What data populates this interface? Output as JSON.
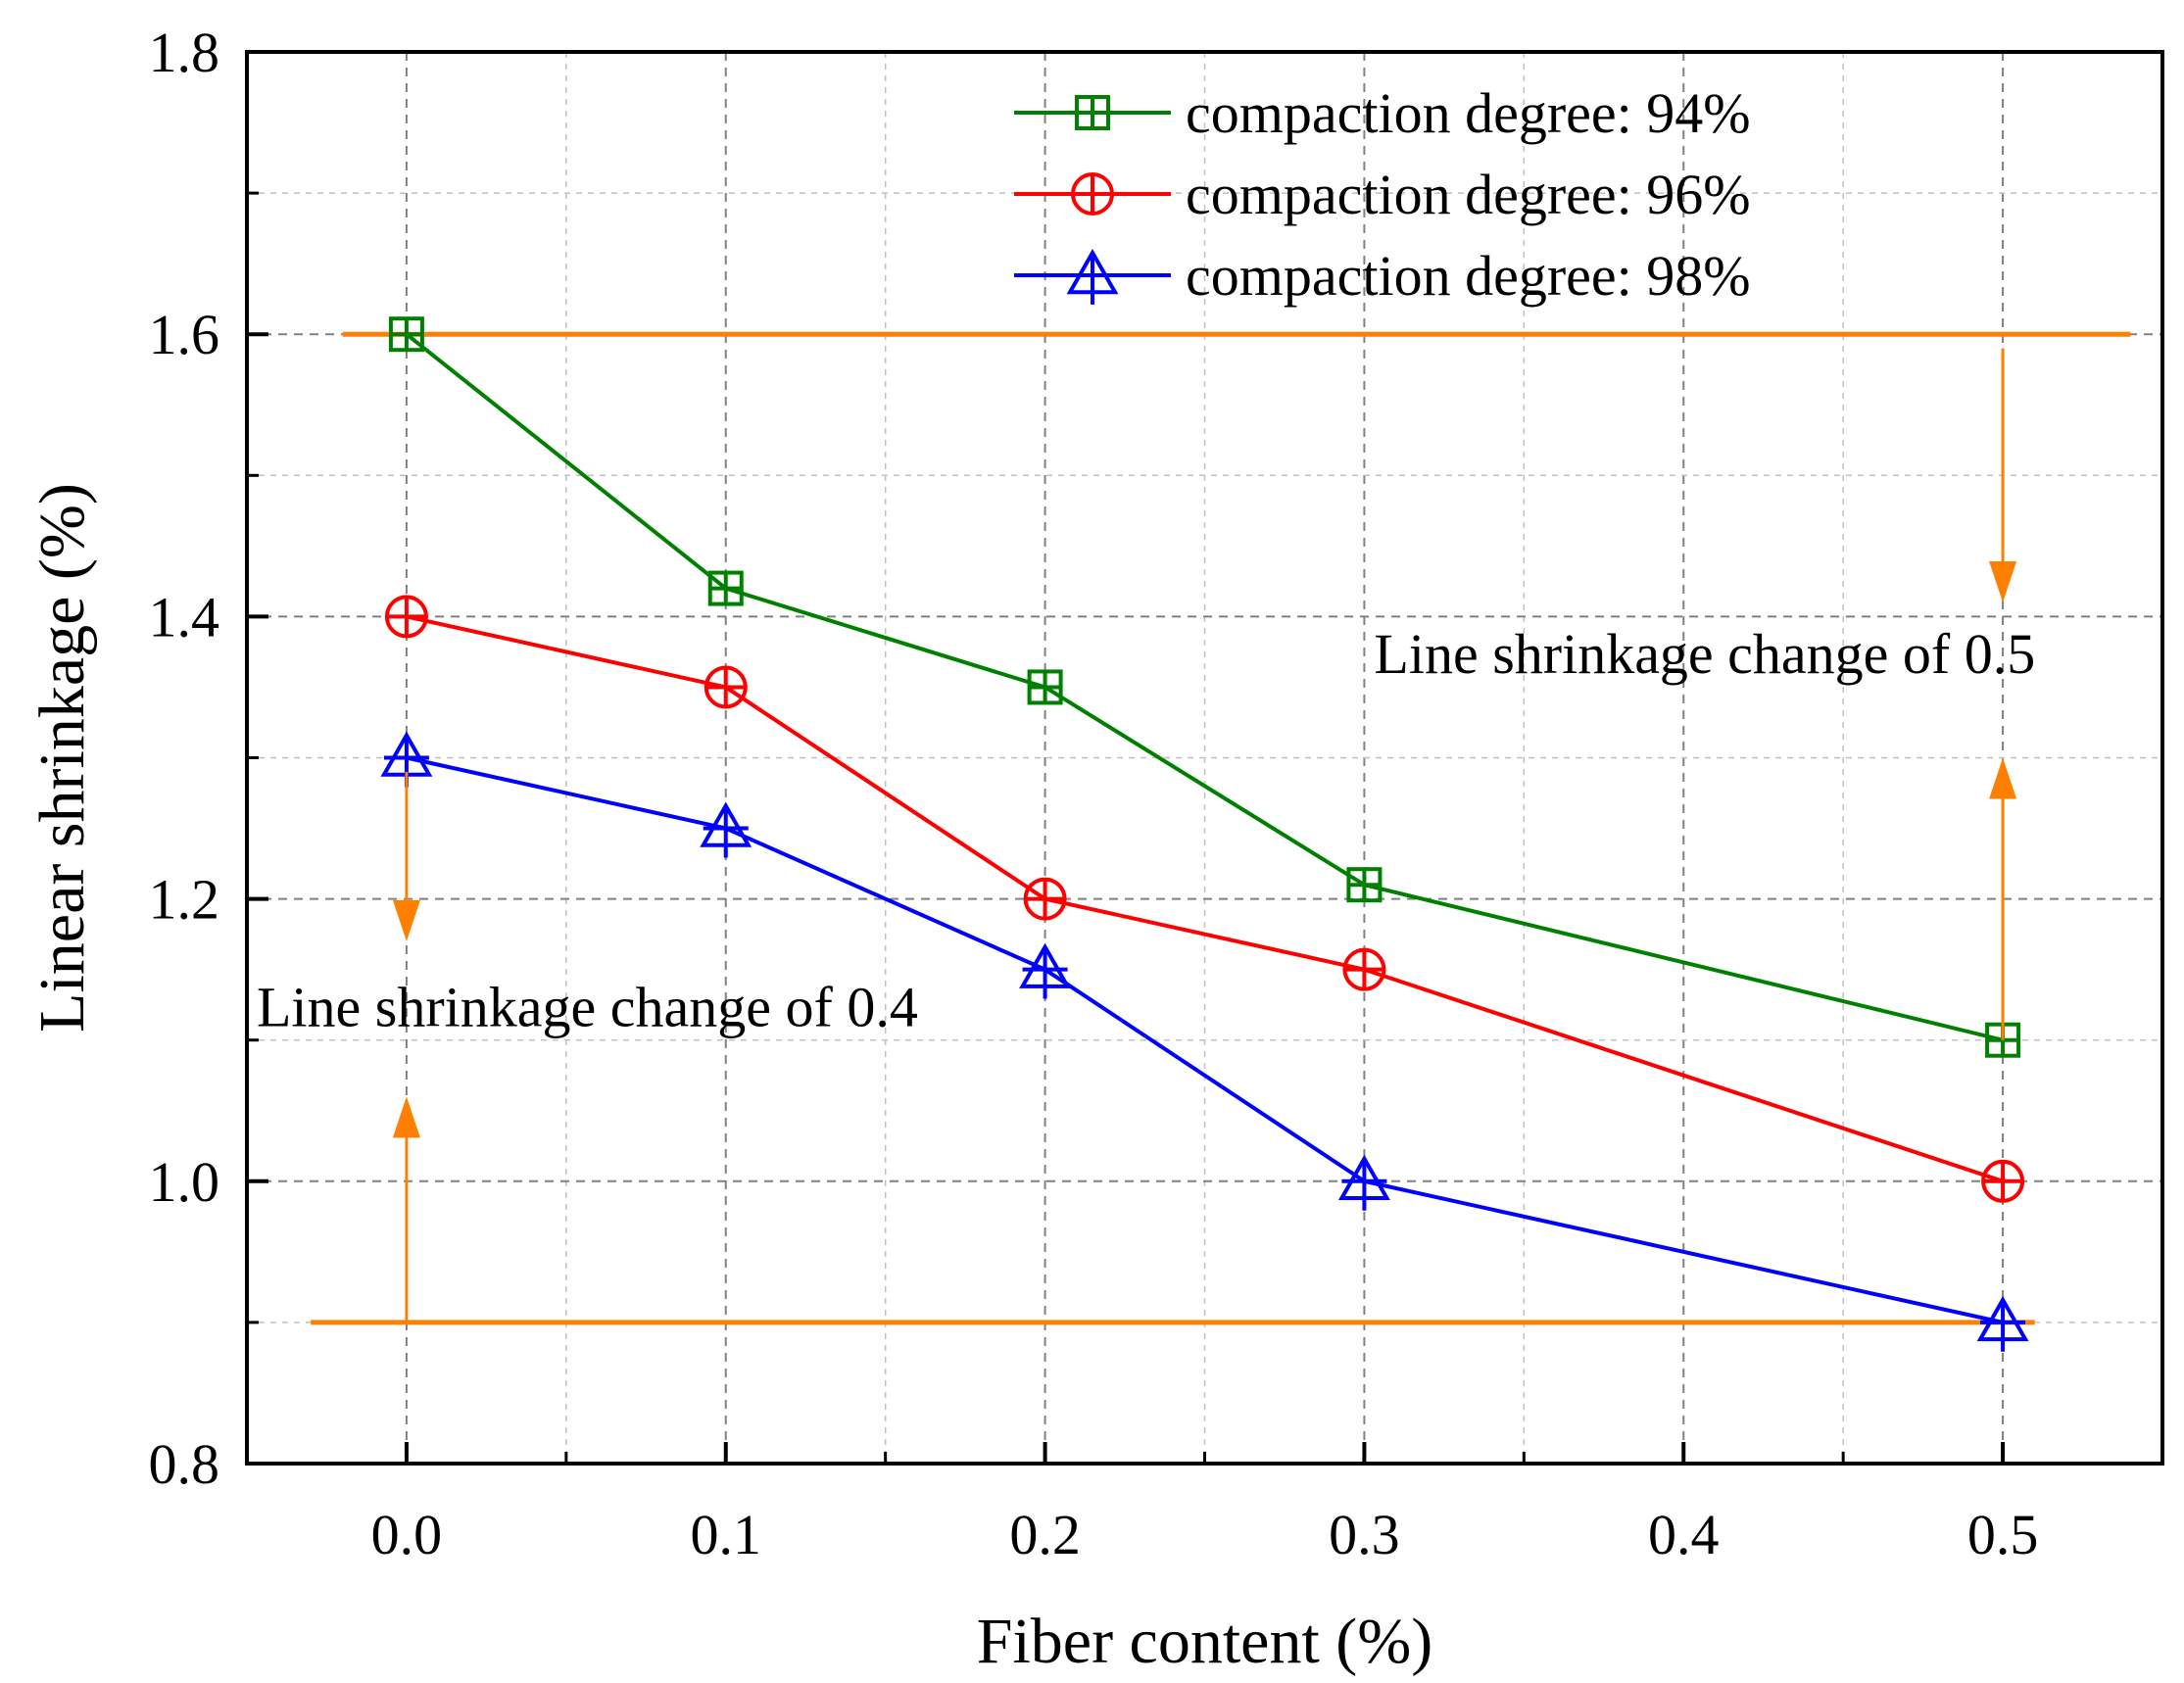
{
  "chart_data": {
    "type": "line",
    "title": "",
    "xlabel": "Fiber content (%)",
    "ylabel": "Linear shrinkage (%)",
    "xlim": [
      -0.05,
      0.55
    ],
    "ylim": [
      0.8,
      1.8
    ],
    "x_ticks": [
      0.0,
      0.1,
      0.2,
      0.3,
      0.4,
      0.5
    ],
    "x_tick_labels": [
      "0.0",
      "0.1",
      "0.2",
      "0.3",
      "0.4",
      "0.5"
    ],
    "x_minor_ticks": [
      0.05,
      0.15,
      0.25,
      0.35,
      0.45
    ],
    "y_ticks": [
      0.8,
      1.0,
      1.2,
      1.4,
      1.6,
      1.8
    ],
    "y_tick_labels": [
      "0.8",
      "1.0",
      "1.2",
      "1.4",
      "1.6",
      "1.8"
    ],
    "y_minor_ticks": [
      0.9,
      1.1,
      1.3,
      1.5,
      1.7
    ],
    "grid": true,
    "legend_position": "top-right",
    "series": [
      {
        "name": "compaction degree: 94%",
        "color": "#008000",
        "marker": "square-plus",
        "x": [
          0.0,
          0.1,
          0.2,
          0.3,
          0.5
        ],
        "values": [
          1.6,
          1.42,
          1.35,
          1.21,
          1.1
        ]
      },
      {
        "name": "compaction degree: 96%",
        "color": "#ff0000",
        "marker": "circle-plus",
        "x": [
          0.0,
          0.1,
          0.2,
          0.3,
          0.5
        ],
        "values": [
          1.4,
          1.35,
          1.2,
          1.15,
          1.0
        ]
      },
      {
        "name": "compaction degree: 98%",
        "color": "#0000ff",
        "marker": "triangle-plus",
        "x": [
          0.0,
          0.1,
          0.2,
          0.3,
          0.5
        ],
        "values": [
          1.3,
          1.25,
          1.15,
          1.0,
          0.9
        ]
      }
    ],
    "reference_lines": [
      {
        "y": 1.6,
        "x_from": -0.02,
        "x_to": 0.54,
        "color": "#ff8000"
      },
      {
        "y": 0.9,
        "x_from": -0.03,
        "x_to": 0.51,
        "color": "#ff8000"
      }
    ],
    "annotations": [
      {
        "text": "Line shrinkage change of 0.5",
        "color": "#ff8000",
        "arrow_x": 0.5,
        "arrow_down_from": 1.59,
        "arrow_down_to": 1.41,
        "arrow_up_from": 1.1,
        "arrow_up_to": 1.3,
        "label_x": 0.3,
        "label_y": 1.36,
        "anchor": "start"
      },
      {
        "text": "Line shrinkage change of 0.4",
        "color": "#ff8000",
        "arrow_x": 0.0,
        "arrow_down_from": 1.29,
        "arrow_down_to": 1.17,
        "arrow_up_from": 0.9,
        "arrow_up_to": 1.06,
        "label_x": -0.05,
        "label_y": 1.11,
        "anchor": "start"
      }
    ]
  }
}
